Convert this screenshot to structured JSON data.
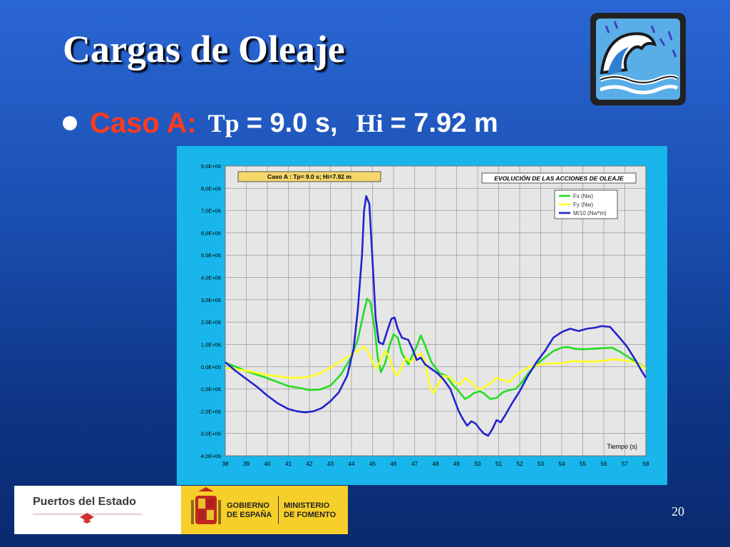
{
  "slide": {
    "title": "Cargas de Oleaje",
    "bullet": {
      "case_label": "Caso A:",
      "tp_label": "Tp",
      "tp_value": "= 9.0 s,",
      "hi_label": "Hi",
      "hi_value": "= 7.92 m"
    },
    "page_number": "20"
  },
  "footer": {
    "left_logo_text": "Puertos del Estado",
    "gob_line1": "GOBIERNO",
    "gob_line2": "DE ESPAÑA",
    "min_line1": "MINISTERIO",
    "min_line2": "DE FOMENTO"
  },
  "colors": {
    "background": "#1a4fb0",
    "case_label": "#ff3b1e",
    "chart_frame": "#18b6ea",
    "plot_area": "#e6e6e6",
    "series_fx": "#22dd22",
    "series_fy": "#ffff22",
    "series_m": "#2222cc"
  },
  "chart_data": {
    "type": "line",
    "title": "EVOLUCIÓN DE LAS ACCIONES DE OLEAJE",
    "annotation": "Caso A : Tp= 9.0 s; Hi=7.92 m",
    "xlabel": "Tiempo (s)",
    "ylabel": "",
    "xlim": [
      38,
      58
    ],
    "ylim": [
      -4000000,
      9000000
    ],
    "grid": true,
    "legend_position": "top-right",
    "x_ticks": [
      "38",
      "39",
      "40",
      "41",
      "42",
      "43",
      "44",
      "45",
      "46",
      "47",
      "48",
      "49",
      "50",
      "51",
      "52",
      "53",
      "54",
      "55",
      "56",
      "57",
      "58"
    ],
    "y_ticks": [
      "9,0E+06",
      "8,0E+06",
      "7,0E+06",
      "6,0E+06",
      "5,0E+06",
      "4,0E+06",
      "3,0E+06",
      "2,0E+06",
      "1,0E+06",
      "0,0E+00",
      "-1,0E+06",
      "-2,0E+06",
      "-3,0E+06",
      "-4,0E+06"
    ],
    "series": [
      {
        "name": "Fx (Nw)",
        "color": "#22dd22",
        "points": [
          [
            38,
            180000
          ],
          [
            39,
            -200000
          ],
          [
            40,
            -520000
          ],
          [
            41,
            -870000
          ],
          [
            41.5,
            -950000
          ],
          [
            42,
            -1050000
          ],
          [
            42.5,
            -1030000
          ],
          [
            43,
            -850000
          ],
          [
            43.5,
            -350000
          ],
          [
            44,
            450000
          ],
          [
            44.3,
            1200000
          ],
          [
            44.6,
            2500000
          ],
          [
            44.75,
            3050000
          ],
          [
            44.9,
            2900000
          ],
          [
            45.1,
            1700000
          ],
          [
            45.25,
            400000
          ],
          [
            45.4,
            -250000
          ],
          [
            45.6,
            150000
          ],
          [
            45.8,
            900000
          ],
          [
            46,
            1450000
          ],
          [
            46.2,
            1300000
          ],
          [
            46.4,
            600000
          ],
          [
            46.7,
            100000
          ],
          [
            46.9,
            500000
          ],
          [
            47.1,
            900000
          ],
          [
            47.3,
            1400000
          ],
          [
            47.5,
            950000
          ],
          [
            47.8,
            200000
          ],
          [
            48.2,
            -300000
          ],
          [
            48.5,
            -400000
          ],
          [
            48.8,
            -800000
          ],
          [
            49.1,
            -1100000
          ],
          [
            49.4,
            -1450000
          ],
          [
            49.6,
            -1350000
          ],
          [
            49.8,
            -1200000
          ],
          [
            50.1,
            -1100000
          ],
          [
            50.3,
            -1200000
          ],
          [
            50.6,
            -1450000
          ],
          [
            50.9,
            -1400000
          ],
          [
            51.2,
            -1150000
          ],
          [
            51.5,
            -1050000
          ],
          [
            51.8,
            -1000000
          ],
          [
            52.1,
            -700000
          ],
          [
            52.4,
            -300000
          ],
          [
            52.8,
            100000
          ],
          [
            53.2,
            400000
          ],
          [
            53.6,
            700000
          ],
          [
            54,
            850000
          ],
          [
            54.3,
            880000
          ],
          [
            54.6,
            800000
          ],
          [
            55,
            780000
          ],
          [
            55.5,
            800000
          ],
          [
            56,
            830000
          ],
          [
            56.4,
            850000
          ],
          [
            56.8,
            650000
          ],
          [
            57.3,
            350000
          ],
          [
            57.8,
            50000
          ],
          [
            58,
            -100000
          ]
        ]
      },
      {
        "name": "Fy (Nw)",
        "color": "#ffff22",
        "points": [
          [
            38,
            -50000
          ],
          [
            39,
            -180000
          ],
          [
            40,
            -380000
          ],
          [
            40.5,
            -430000
          ],
          [
            41,
            -500000
          ],
          [
            41.5,
            -500000
          ],
          [
            42,
            -450000
          ],
          [
            42.5,
            -300000
          ],
          [
            43,
            -50000
          ],
          [
            43.5,
            250000
          ],
          [
            44,
            550000
          ],
          [
            44.3,
            700000
          ],
          [
            44.6,
            900000
          ],
          [
            44.8,
            650000
          ],
          [
            45,
            200000
          ],
          [
            45.2,
            -80000
          ],
          [
            45.4,
            300000
          ],
          [
            45.6,
            700000
          ],
          [
            45.8,
            450000
          ],
          [
            46,
            -200000
          ],
          [
            46.2,
            -400000
          ],
          [
            46.4,
            0
          ],
          [
            46.6,
            400000
          ],
          [
            46.8,
            200000
          ],
          [
            47,
            400000
          ],
          [
            47.3,
            600000
          ],
          [
            47.5,
            250000
          ],
          [
            47.7,
            -800000
          ],
          [
            47.9,
            -1200000
          ],
          [
            48.1,
            -800000
          ],
          [
            48.4,
            -400000
          ],
          [
            48.7,
            -500000
          ],
          [
            48.9,
            -700000
          ],
          [
            49.2,
            -800000
          ],
          [
            49.4,
            -500000
          ],
          [
            49.7,
            -700000
          ],
          [
            50,
            -1000000
          ],
          [
            50.3,
            -950000
          ],
          [
            50.6,
            -750000
          ],
          [
            50.9,
            -500000
          ],
          [
            51.2,
            -600000
          ],
          [
            51.5,
            -700000
          ],
          [
            51.8,
            -400000
          ],
          [
            52.1,
            -200000
          ],
          [
            52.5,
            0
          ],
          [
            53,
            100000
          ],
          [
            53.5,
            150000
          ],
          [
            54,
            150000
          ],
          [
            54.5,
            250000
          ],
          [
            55,
            230000
          ],
          [
            55.5,
            220000
          ],
          [
            56,
            260000
          ],
          [
            56.4,
            330000
          ],
          [
            56.8,
            300000
          ],
          [
            57.2,
            250000
          ],
          [
            57.6,
            150000
          ],
          [
            58,
            -100000
          ]
        ]
      },
      {
        "name": "M/10 (Nw*m)",
        "color": "#2222cc",
        "points": [
          [
            38,
            200000
          ],
          [
            38.5,
            -200000
          ],
          [
            39,
            -550000
          ],
          [
            39.5,
            -900000
          ],
          [
            40,
            -1300000
          ],
          [
            40.5,
            -1650000
          ],
          [
            41,
            -1900000
          ],
          [
            41.4,
            -2000000
          ],
          [
            41.8,
            -2050000
          ],
          [
            42.2,
            -2000000
          ],
          [
            42.6,
            -1850000
          ],
          [
            43,
            -1550000
          ],
          [
            43.4,
            -1150000
          ],
          [
            43.8,
            -400000
          ],
          [
            44.1,
            800000
          ],
          [
            44.3,
            2500000
          ],
          [
            44.5,
            5000000
          ],
          [
            44.6,
            7000000
          ],
          [
            44.7,
            7650000
          ],
          [
            44.85,
            7300000
          ],
          [
            45,
            4800000
          ],
          [
            45.15,
            2200000
          ],
          [
            45.3,
            1100000
          ],
          [
            45.5,
            1000000
          ],
          [
            45.7,
            1600000
          ],
          [
            45.9,
            2150000
          ],
          [
            46.05,
            2200000
          ],
          [
            46.2,
            1700000
          ],
          [
            46.4,
            1300000
          ],
          [
            46.7,
            1200000
          ],
          [
            46.9,
            800000
          ],
          [
            47.1,
            300000
          ],
          [
            47.3,
            400000
          ],
          [
            47.5,
            100000
          ],
          [
            47.8,
            -100000
          ],
          [
            48.1,
            -300000
          ],
          [
            48.4,
            -600000
          ],
          [
            48.7,
            -1000000
          ],
          [
            48.9,
            -1500000
          ],
          [
            49.1,
            -2000000
          ],
          [
            49.3,
            -2350000
          ],
          [
            49.5,
            -2650000
          ],
          [
            49.7,
            -2450000
          ],
          [
            49.9,
            -2550000
          ],
          [
            50.1,
            -2800000
          ],
          [
            50.3,
            -3000000
          ],
          [
            50.5,
            -3100000
          ],
          [
            50.7,
            -2800000
          ],
          [
            50.9,
            -2400000
          ],
          [
            51.1,
            -2500000
          ],
          [
            51.3,
            -2200000
          ],
          [
            51.6,
            -1700000
          ],
          [
            52,
            -1100000
          ],
          [
            52.4,
            -400000
          ],
          [
            52.8,
            200000
          ],
          [
            53.2,
            700000
          ],
          [
            53.6,
            1300000
          ],
          [
            54,
            1550000
          ],
          [
            54.4,
            1700000
          ],
          [
            54.8,
            1600000
          ],
          [
            55.2,
            1700000
          ],
          [
            55.6,
            1750000
          ],
          [
            55.9,
            1820000
          ],
          [
            56.3,
            1780000
          ],
          [
            56.7,
            1350000
          ],
          [
            57.1,
            900000
          ],
          [
            57.5,
            300000
          ],
          [
            57.8,
            -200000
          ],
          [
            58,
            -500000
          ]
        ]
      }
    ]
  }
}
